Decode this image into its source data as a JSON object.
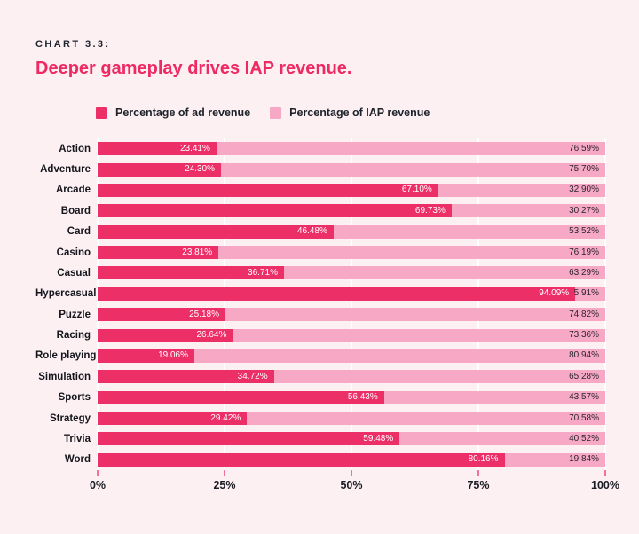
{
  "page": {
    "background": "#FDF0F3"
  },
  "header": {
    "eyebrow": "CHART 3.3:",
    "title": "Deeper gameplay drives IAP revenue."
  },
  "legend": [
    {
      "label": "Percentage of ad revenue",
      "color": "#ED2F68"
    },
    {
      "label": "Percentage of IAP revenue",
      "color": "#F7A8C4"
    }
  ],
  "chart_data": {
    "type": "bar",
    "stacked": true,
    "orientation": "horizontal",
    "title": "Deeper gameplay drives IAP revenue.",
    "xlabel": "",
    "ylabel": "",
    "xlim": [
      0,
      100
    ],
    "x_ticks": [
      "0%",
      "25%",
      "50%",
      "75%",
      "100%"
    ],
    "grid": "vertical-white-lines",
    "legend_position": "top",
    "categories": [
      "Action",
      "Adventure",
      "Arcade",
      "Board",
      "Card",
      "Casino",
      "Casual",
      "Hypercasual",
      "Puzzle",
      "Racing",
      "Role playing",
      "Simulation",
      "Sports",
      "Strategy",
      "Trivia",
      "Word"
    ],
    "series": [
      {
        "name": "Percentage of ad revenue",
        "color": "#ED2F68",
        "value_label_color": "#FFFFFF",
        "values": [
          23.41,
          24.3,
          67.1,
          69.73,
          46.48,
          23.81,
          36.71,
          94.09,
          25.18,
          26.64,
          19.06,
          34.72,
          56.43,
          29.42,
          59.48,
          80.16
        ]
      },
      {
        "name": "Percentage of IAP revenue",
        "color": "#F7A8C4",
        "value_label_color": "#2B2630",
        "values": [
          76.59,
          75.7,
          32.9,
          30.27,
          53.52,
          76.19,
          63.29,
          5.91,
          74.82,
          73.36,
          80.94,
          65.28,
          43.57,
          70.58,
          40.52,
          19.84
        ]
      }
    ],
    "value_label_format": "0.00%"
  }
}
